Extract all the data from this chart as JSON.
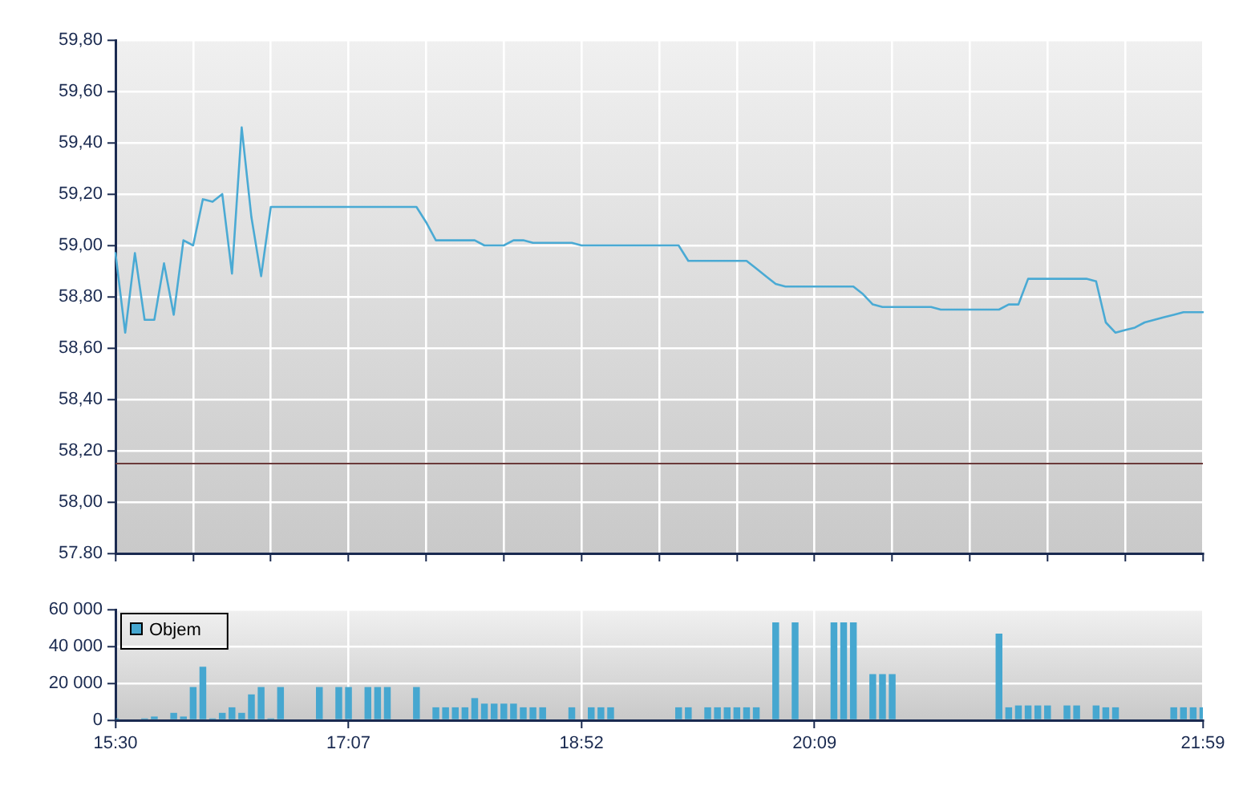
{
  "chart_data": [
    {
      "type": "line",
      "categories": [
        null,
        null,
        null,
        null,
        null,
        null,
        null,
        null,
        null,
        null,
        null,
        null,
        null,
        null,
        null,
        null,
        null,
        null,
        null,
        null,
        null,
        null,
        null,
        null,
        null,
        null,
        null,
        null,
        null,
        null,
        null,
        null,
        null,
        null,
        null,
        null,
        null,
        null,
        null,
        null,
        null,
        null,
        null,
        null,
        null,
        null,
        null,
        null,
        null,
        null,
        null,
        null,
        null,
        null,
        null,
        null,
        null,
        null,
        null,
        null,
        null,
        null,
        null,
        null,
        null,
        null,
        null,
        null,
        null,
        null,
        null,
        null,
        null,
        null,
        null,
        null,
        null,
        null,
        null,
        null,
        null,
        null,
        null,
        null,
        null,
        null,
        null,
        null,
        null,
        null,
        null,
        null,
        null,
        null,
        null,
        null,
        null,
        null,
        null,
        null,
        null,
        null,
        null,
        null,
        null,
        null,
        null,
        null,
        null,
        null,
        null,
        null,
        null
      ],
      "series": [
        {
          "color": "#4aaad4",
          "values": [
            58.97,
            58.66,
            58.97,
            58.71,
            58.71,
            58.93,
            58.73,
            59.02,
            59.0,
            59.18,
            59.17,
            59.2,
            58.89,
            59.46,
            59.11,
            58.88,
            59.15,
            59.15,
            59.15,
            59.15,
            59.15,
            59.15,
            59.15,
            59.15,
            59.15,
            59.15,
            59.15,
            59.15,
            59.15,
            59.15,
            59.15,
            59.15,
            59.09,
            59.02,
            59.02,
            59.02,
            59.02,
            59.02,
            59.0,
            59.0,
            59.0,
            59.02,
            59.02,
            59.01,
            59.01,
            59.01,
            59.01,
            59.01,
            59.0,
            59.0,
            59.0,
            59.0,
            59.0,
            59.0,
            59.0,
            59.0,
            59.0,
            59.0,
            59.0,
            58.94,
            58.94,
            58.94,
            58.94,
            58.94,
            58.94,
            58.94,
            58.91,
            58.88,
            58.85,
            58.84,
            58.84,
            58.84,
            58.84,
            58.84,
            58.84,
            58.84,
            58.84,
            58.81,
            58.77,
            58.76,
            58.76,
            58.76,
            58.76,
            58.76,
            58.76,
            58.75,
            58.75,
            58.75,
            58.75,
            58.75,
            58.75,
            58.75,
            58.77,
            58.77,
            58.87,
            58.87,
            58.87,
            58.87,
            58.87,
            58.87,
            58.87,
            58.86,
            58.7,
            58.66,
            58.67,
            58.68,
            58.7,
            58.71,
            58.72,
            58.73,
            58.74,
            58.74,
            58.74
          ]
        }
      ],
      "ylim": [
        57.8,
        59.8
      ],
      "yticks": [
        {
          "value": 57.8,
          "label": "57.80"
        },
        {
          "value": 58,
          "label": "58,00"
        },
        {
          "value": 58.2,
          "label": "58,20"
        },
        {
          "value": 58.4,
          "label": "58,40"
        },
        {
          "value": 58.6,
          "label": "58,60"
        },
        {
          "value": 58.8,
          "label": "58,80"
        },
        {
          "value": 59,
          "label": "59,00"
        },
        {
          "value": 59.2,
          "label": "59,20"
        },
        {
          "value": 59.4,
          "label": "59,40"
        },
        {
          "value": 59.6,
          "label": "59,60"
        },
        {
          "value": 59.8,
          "label": "59,80"
        }
      ],
      "grid": true,
      "tick_labels": "y",
      "marker": "none",
      "ref_lines": [
        {
          "axis": "y",
          "value": 58.15,
          "color": "#6b3a3a"
        }
      ]
    },
    {
      "type": "bar",
      "categories": [
        "15:30",
        null,
        null,
        null,
        null,
        null,
        null,
        null,
        null,
        null,
        null,
        null,
        null,
        null,
        null,
        null,
        null,
        null,
        null,
        null,
        null,
        null,
        null,
        null,
        "17:07",
        null,
        null,
        null,
        null,
        null,
        null,
        null,
        null,
        null,
        null,
        null,
        null,
        null,
        null,
        null,
        null,
        null,
        null,
        null,
        null,
        null,
        null,
        null,
        "18:52",
        null,
        null,
        null,
        null,
        null,
        null,
        null,
        null,
        null,
        null,
        null,
        null,
        null,
        null,
        null,
        null,
        null,
        null,
        null,
        null,
        null,
        null,
        null,
        "20:09",
        null,
        null,
        null,
        null,
        null,
        null,
        null,
        null,
        null,
        null,
        null,
        null,
        null,
        null,
        null,
        null,
        null,
        null,
        null,
        null,
        null,
        null,
        null,
        null,
        null,
        null,
        null,
        null,
        null,
        null,
        null,
        null,
        null,
        null,
        null,
        null,
        null,
        null,
        null,
        "21:59"
      ],
      "series": [
        {
          "name": "Objem",
          "color": "#46a7d0",
          "values": [
            1000,
            null,
            null,
            1000,
            2000,
            null,
            4000,
            2000,
            18000,
            29000,
            1000,
            4000,
            7000,
            4000,
            14000,
            18000,
            1000,
            18000,
            null,
            null,
            null,
            18000,
            null,
            18000,
            18000,
            null,
            18000,
            18000,
            18000,
            null,
            null,
            18000,
            null,
            7000,
            7000,
            7000,
            7000,
            12000,
            9000,
            9000,
            9000,
            9000,
            7000,
            7000,
            7000,
            null,
            null,
            7000,
            null,
            7000,
            7000,
            7000,
            null,
            null,
            null,
            null,
            null,
            null,
            7000,
            7000,
            null,
            7000,
            7000,
            7000,
            7000,
            7000,
            7000,
            null,
            53000,
            null,
            53000,
            null,
            null,
            null,
            53000,
            53000,
            53000,
            null,
            25000,
            25000,
            25000,
            null,
            null,
            null,
            null,
            null,
            null,
            null,
            null,
            null,
            null,
            47000,
            7000,
            8000,
            8000,
            8000,
            8000,
            null,
            8000,
            8000,
            null,
            8000,
            7000,
            7000,
            null,
            null,
            null,
            null,
            null,
            7000,
            7000,
            7000,
            7000
          ]
        }
      ],
      "ylim": [
        0,
        60000
      ],
      "yticks": [
        0,
        {
          "value": 20000,
          "label": "20 000"
        },
        {
          "value": 40000,
          "label": "40 000"
        },
        {
          "value": 60000,
          "label": "60 000"
        }
      ],
      "grid": true,
      "legend": "top left"
    }
  ]
}
